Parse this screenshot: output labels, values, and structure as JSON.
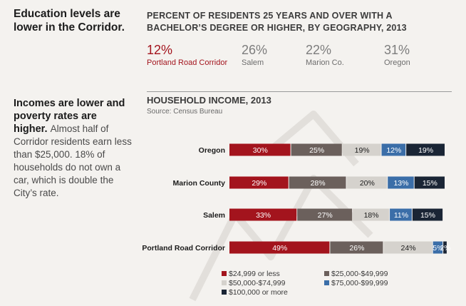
{
  "left": {
    "education_heading": "Education levels are lower in the Corridor.",
    "income_heading_bold": "Incomes are lower and poverty rates are higher.",
    "income_body": "Almost half of Corridor residents earn less than $25,000. 18% of households do not own a car, which is double the City’s rate."
  },
  "education": {
    "title": "PERCENT OF RESIDENTS 25 YEARS AND OVER WITH A BACHELOR’S DEGREE OR HIGHER, BY GEOGRAPHY, 2013",
    "stats": [
      {
        "pct": "12%",
        "label": "Portland Road Corridor",
        "highlight": true
      },
      {
        "pct": "26%",
        "label": "Salem",
        "highlight": false
      },
      {
        "pct": "22%",
        "label": "Marion Co.",
        "highlight": false
      },
      {
        "pct": "31%",
        "label": "Oregon",
        "highlight": false
      }
    ]
  },
  "chart_data": {
    "type": "bar",
    "orientation": "horizontal",
    "stacked": true,
    "title": "HOUSEHOLD INCOME, 2013",
    "subtitle": "Source: Census Bureau",
    "categories": [
      "Oregon",
      "Marion County",
      "Salem",
      "Portland Road Corridor"
    ],
    "series": [
      {
        "name": "$24,999 or less",
        "color": "#a3141d",
        "values": [
          30,
          29,
          33,
          49
        ],
        "labels": [
          "30%",
          "29%",
          "33%",
          "49%"
        ]
      },
      {
        "name": "$25,000-$49,999",
        "color": "#6b605c",
        "values": [
          25,
          28,
          27,
          26
        ],
        "labels": [
          "25%",
          "28%",
          "27%",
          "26%"
        ]
      },
      {
        "name": "$50,000-$74,999",
        "color": "#d5d2cd",
        "values": [
          19,
          20,
          18,
          24
        ],
        "labels": [
          "19%",
          "20%",
          "18%",
          "24%"
        ]
      },
      {
        "name": "$75,000-$99,999",
        "color": "#3b6ea8",
        "values": [
          12,
          13,
          11,
          5
        ],
        "labels": [
          "12%",
          "13%",
          "11%",
          "5%"
        ]
      },
      {
        "name": "$100,000 or more",
        "color": "#1a2535",
        "values": [
          19,
          15,
          15,
          2
        ],
        "labels": [
          "19%",
          "15%",
          "15%",
          "2%"
        ]
      }
    ],
    "xlim": [
      0,
      105
    ],
    "legend_position": "bottom"
  }
}
